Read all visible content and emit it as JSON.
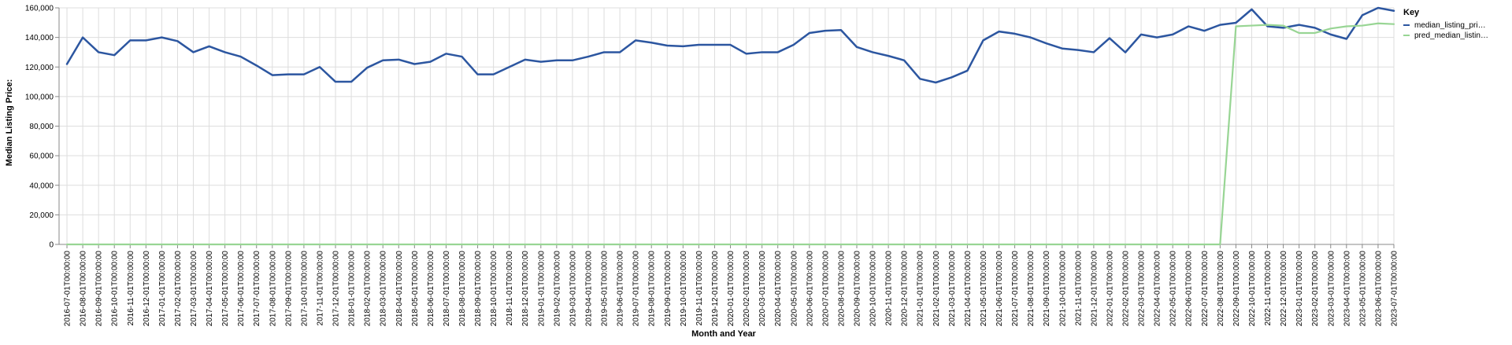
{
  "chart_data": {
    "type": "line",
    "title": "",
    "xlabel": "Month and Year",
    "ylabel": "Median Listing Price:",
    "ylim": [
      0,
      160000
    ],
    "yticks": [
      "0",
      "20,000",
      "40,000",
      "60,000",
      "80,000",
      "100,000",
      "120,000",
      "140,000",
      "160,000"
    ],
    "grid": true,
    "legend_position": "top-right",
    "legend_title": "Key",
    "x": [
      "2016-07-01T00:00:00",
      "2016-08-01T00:00:00",
      "2016-09-01T00:00:00",
      "2016-10-01T00:00:00",
      "2016-11-01T00:00:00",
      "2016-12-01T00:00:00",
      "2017-01-01T00:00:00",
      "2017-02-01T00:00:00",
      "2017-03-01T00:00:00",
      "2017-04-01T00:00:00",
      "2017-05-01T00:00:00",
      "2017-06-01T00:00:00",
      "2017-07-01T00:00:00",
      "2017-08-01T00:00:00",
      "2017-09-01T00:00:00",
      "2017-10-01T00:00:00",
      "2017-11-01T00:00:00",
      "2017-12-01T00:00:00",
      "2018-01-01T00:00:00",
      "2018-02-01T00:00:00",
      "2018-03-01T00:00:00",
      "2018-04-01T00:00:00",
      "2018-05-01T00:00:00",
      "2018-06-01T00:00:00",
      "2018-07-01T00:00:00",
      "2018-08-01T00:00:00",
      "2018-09-01T00:00:00",
      "2018-10-01T00:00:00",
      "2018-11-01T00:00:00",
      "2018-12-01T00:00:00",
      "2019-01-01T00:00:00",
      "2019-02-01T00:00:00",
      "2019-03-01T00:00:00",
      "2019-04-01T00:00:00",
      "2019-05-01T00:00:00",
      "2019-06-01T00:00:00",
      "2019-07-01T00:00:00",
      "2019-08-01T00:00:00",
      "2019-09-01T00:00:00",
      "2019-10-01T00:00:00",
      "2019-11-01T00:00:00",
      "2019-12-01T00:00:00",
      "2020-01-01T00:00:00",
      "2020-02-01T00:00:00",
      "2020-03-01T00:00:00",
      "2020-04-01T00:00:00",
      "2020-05-01T00:00:00",
      "2020-06-01T00:00:00",
      "2020-07-01T00:00:00",
      "2020-08-01T00:00:00",
      "2020-09-01T00:00:00",
      "2020-10-01T00:00:00",
      "2020-11-01T00:00:00",
      "2020-12-01T00:00:00",
      "2021-01-01T00:00:00",
      "2021-02-01T00:00:00",
      "2021-03-01T00:00:00",
      "2021-04-01T00:00:00",
      "2021-05-01T00:00:00",
      "2021-06-01T00:00:00",
      "2021-07-01T00:00:00",
      "2021-08-01T00:00:00",
      "2021-09-01T00:00:00",
      "2021-10-01T00:00:00",
      "2021-11-01T00:00:00",
      "2021-12-01T00:00:00",
      "2022-01-01T00:00:00",
      "2022-02-01T00:00:00",
      "2022-03-01T00:00:00",
      "2022-04-01T00:00:00",
      "2022-05-01T00:00:00",
      "2022-06-01T00:00:00",
      "2022-07-01T00:00:00",
      "2022-08-01T00:00:00",
      "2022-09-01T00:00:00",
      "2022-10-01T00:00:00",
      "2022-11-01T00:00:00",
      "2022-12-01T00:00:00",
      "2023-01-01T00:00:00",
      "2023-02-01T00:00:00",
      "2023-03-01T00:00:00",
      "2023-04-01T00:00:00",
      "2023-05-01T00:00:00",
      "2023-06-01T00:00:00",
      "2023-07-01T00:00:00"
    ],
    "series": [
      {
        "name": "median_listing_pri…",
        "color": "#2c56a0",
        "values": [
          122000,
          140000,
          130000,
          128000,
          138000,
          138000,
          140000,
          137500,
          130000,
          134000,
          130000,
          127000,
          121000,
          114500,
          115000,
          115000,
          120000,
          110000,
          110000,
          119500,
          124500,
          125000,
          122000,
          123500,
          129000,
          127000,
          115000,
          115000,
          120000,
          125000,
          123500,
          124500,
          124500,
          127000,
          130000,
          130000,
          138000,
          136500,
          134500,
          134000,
          135000,
          135000,
          135000,
          129000,
          130000,
          130000,
          135000,
          143000,
          144500,
          145000,
          133500,
          130000,
          127500,
          124500,
          112000,
          109500,
          113000,
          117500,
          138000,
          144000,
          142500,
          140000,
          136000,
          132500,
          131500,
          130000,
          139500,
          129900,
          142000,
          140000,
          142000,
          147500,
          144500,
          148500,
          149900,
          159000,
          147500,
          146500,
          148500,
          146500,
          142000,
          139000,
          155000,
          160000,
          158000
        ]
      },
      {
        "name": "pred_median_listin…",
        "color": "#98d594",
        "values": [
          0,
          0,
          0,
          0,
          0,
          0,
          0,
          0,
          0,
          0,
          0,
          0,
          0,
          0,
          0,
          0,
          0,
          0,
          0,
          0,
          0,
          0,
          0,
          0,
          0,
          0,
          0,
          0,
          0,
          0,
          0,
          0,
          0,
          0,
          0,
          0,
          0,
          0,
          0,
          0,
          0,
          0,
          0,
          0,
          0,
          0,
          0,
          0,
          0,
          0,
          0,
          0,
          0,
          0,
          0,
          0,
          0,
          0,
          0,
          0,
          0,
          0,
          0,
          0,
          0,
          0,
          0,
          0,
          0,
          0,
          0,
          0,
          0,
          0,
          147500,
          148000,
          148500,
          148000,
          143000,
          143000,
          146000,
          147500,
          148000,
          149500,
          149000
        ]
      }
    ]
  }
}
